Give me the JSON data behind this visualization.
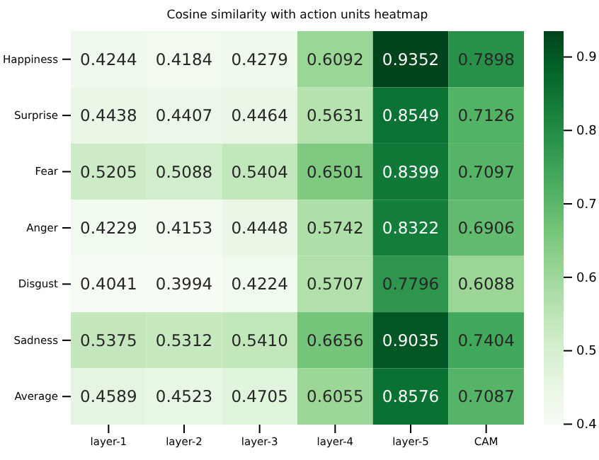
{
  "chart_data": {
    "type": "heatmap",
    "title": "Cosine similarity with action units heatmap",
    "categories": [
      "layer-1",
      "layer-2",
      "layer-3",
      "layer-4",
      "layer-5",
      "CAM"
    ],
    "y_categories": [
      "Happiness",
      "Surprise",
      "Fear",
      "Anger",
      "Disgust",
      "Sadness",
      "Average"
    ],
    "cells": [
      [
        0.4244,
        0.4184,
        0.4279,
        0.6092,
        0.9352,
        0.7898
      ],
      [
        0.4438,
        0.4407,
        0.4464,
        0.5631,
        0.8549,
        0.7126
      ],
      [
        0.5205,
        0.5088,
        0.5404,
        0.6501,
        0.8399,
        0.7097
      ],
      [
        0.4229,
        0.4153,
        0.4448,
        0.5742,
        0.8322,
        0.6906
      ],
      [
        0.4041,
        0.3994,
        0.4224,
        0.5707,
        0.7796,
        0.6088
      ],
      [
        0.5375,
        0.5312,
        0.541,
        0.6656,
        0.9035,
        0.7404
      ],
      [
        0.4589,
        0.4523,
        0.4705,
        0.6055,
        0.8576,
        0.7087
      ]
    ],
    "cell_labels": [
      [
        "0.4244",
        "0.4184",
        "0.4279",
        "0.6092",
        "0.9352",
        "0.7898"
      ],
      [
        "0.4438",
        "0.4407",
        "0.4464",
        "0.5631",
        "0.8549",
        "0.7126"
      ],
      [
        "0.5205",
        "0.5088",
        "0.5404",
        "0.6501",
        "0.8399",
        "0.7097"
      ],
      [
        "0.4229",
        "0.4153",
        "0.4448",
        "0.5742",
        "0.8322",
        "0.6906"
      ],
      [
        "0.4041",
        "0.3994",
        "0.4224",
        "0.5707",
        "0.7796",
        "0.6088"
      ],
      [
        "0.5375",
        "0.5312",
        "0.5410",
        "0.6656",
        "0.9035",
        "0.7404"
      ],
      [
        "0.4589",
        "0.4523",
        "0.4705",
        "0.6055",
        "0.8576",
        "0.7087"
      ]
    ],
    "clim": [
      0.3994,
      0.9352
    ],
    "cticks": [
      0.4,
      0.5,
      0.6,
      0.7,
      0.8,
      0.9
    ],
    "data_labels": true
  }
}
